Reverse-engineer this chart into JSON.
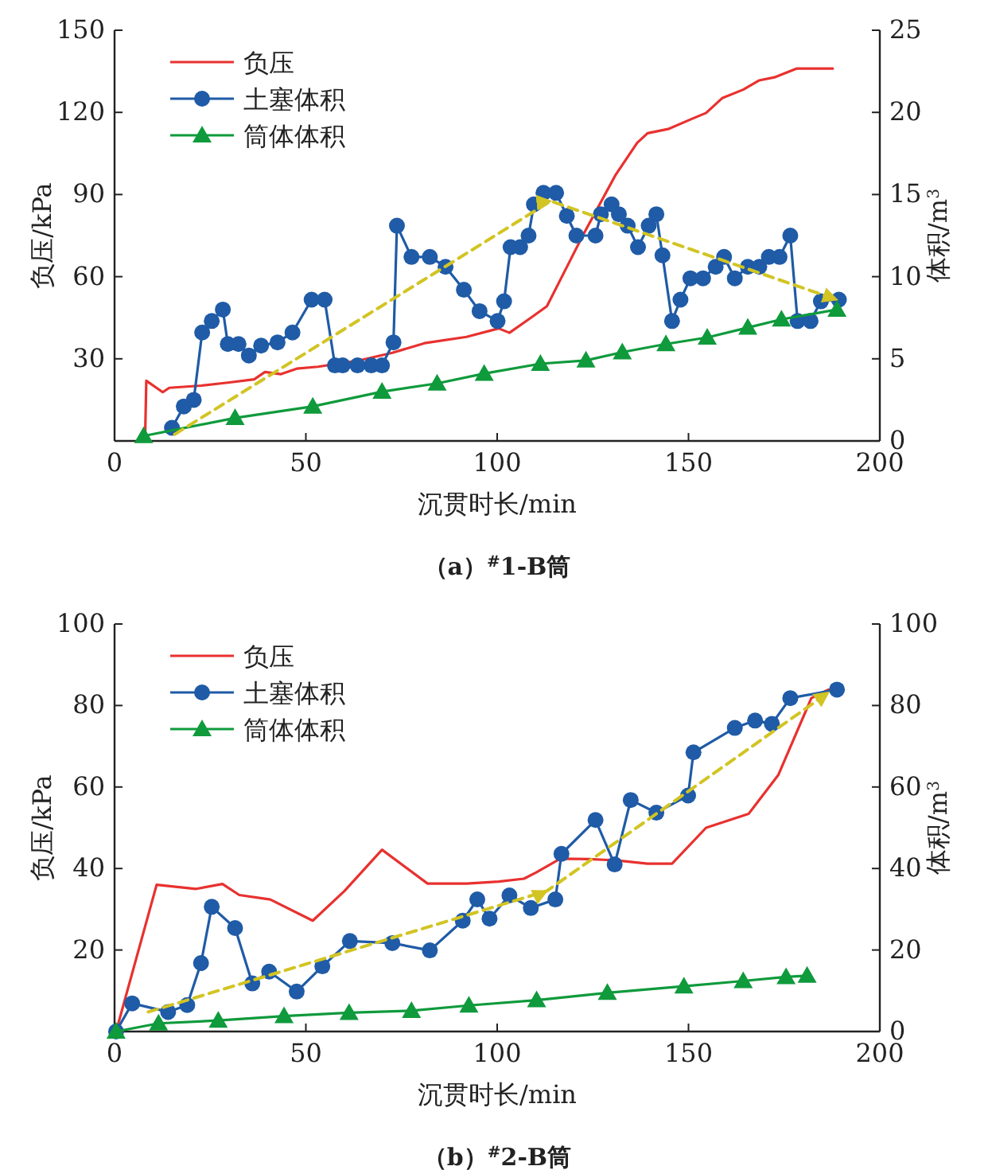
{
  "chart_data": [
    {
      "type": "line",
      "title": "（a）$^{#}$1-B筒",
      "xlabel": "沉贯时长/min",
      "ylabel": "负压/kPa",
      "y2label": "体积/m$^{3}$",
      "legend": "top left",
      "xlim": [
        0,
        200
      ],
      "xticks": [
        0,
        50,
        100,
        150,
        200
      ],
      "ylim": [
        0,
        150
      ],
      "yticks": [
        {
          "value": 0,
          "label": null
        },
        30,
        60,
        90,
        120,
        150
      ],
      "y2lim": [
        0,
        25
      ],
      "y2ticks": [
        0,
        5,
        10,
        15,
        20,
        25
      ],
      "series": [
        {
          "name": "负压",
          "color": "#e8312f",
          "marker": "none",
          "line_style": "solid",
          "x": [
            8,
            8.3,
            12.6,
            14.3,
            22.6,
            29.6,
            36.5,
            39.3,
            43.5,
            47.6,
            53.2,
            64.3,
            72.6,
            81,
            92,
            100.4,
            103.2,
            108.8,
            113,
            117.1,
            122.7,
            131,
            136.6,
            139.3,
            144.9,
            150.5,
            154.6,
            158.8,
            164.3,
            168.5,
            172.7,
            178.2,
            187.7
          ],
          "values": [
            2,
            22,
            17.8,
            19.4,
            20.2,
            21.3,
            22.5,
            25.2,
            24.4,
            26.4,
            27.1,
            29.5,
            32.2,
            35.7,
            38,
            41.1,
            39.5,
            45,
            49.2,
            60.5,
            75.9,
            97.3,
            108.9,
            112.4,
            114,
            117.4,
            119.8,
            125.2,
            128.3,
            131.7,
            132.9,
            136,
            136
          ]
        },
        {
          "name": "土塞体积",
          "color": "#1f5ba6",
          "marker": "circle",
          "line_style": "solid",
          "axis": "y2",
          "x": [
            15,
            18.1,
            20.7,
            22.9,
            25.4,
            28.3,
            29.6,
            32.4,
            35.1,
            38.3,
            42.6,
            46.5,
            51.5,
            54.9,
            57.6,
            59.6,
            63.5,
            67.1,
            69.9,
            72.9,
            73.8,
            77.6,
            82.4,
            86.5,
            91.3,
            95.4,
            100.1,
            101.8,
            103.5,
            106,
            108.2,
            109.6,
            112.1,
            115.4,
            118.2,
            120.7,
            125.7,
            127.1,
            129.9,
            131.8,
            134.1,
            136.8,
            139.6,
            141.6,
            143.2,
            145.7,
            147.9,
            150.5,
            153.8,
            157.1,
            159.3,
            162.1,
            165.5,
            168.5,
            171,
            173.8,
            176.6,
            178.5,
            181.9,
            184.6,
            189.3
          ],
          "values": [
            0.8,
            2.1,
            2.5,
            6.6,
            7.3,
            8,
            5.9,
            5.9,
            5.2,
            5.8,
            6,
            6.6,
            8.6,
            8.6,
            4.6,
            4.6,
            4.6,
            4.6,
            4.6,
            6,
            13.1,
            11.2,
            11.2,
            10.6,
            9.2,
            7.9,
            7.3,
            8.5,
            11.8,
            11.8,
            12.5,
            14.4,
            15.1,
            15.1,
            13.7,
            12.5,
            12.5,
            13.8,
            14.4,
            13.8,
            13.1,
            11.8,
            13.1,
            13.8,
            11.3,
            7.3,
            8.6,
            9.9,
            9.9,
            10.6,
            11.2,
            9.9,
            10.6,
            10.6,
            11.2,
            11.2,
            12.5,
            7.3,
            7.3,
            8.5,
            8.6
          ]
        },
        {
          "name": "筒体体积",
          "color": "#0f9a3c",
          "marker": "triangle",
          "line_style": "solid",
          "axis": "y2",
          "x": [
            7.6,
            31.5,
            51.8,
            69.9,
            84.3,
            96.6,
            111.3,
            123.2,
            132.7,
            144.1,
            154.9,
            165.5,
            174.3,
            188.8
          ],
          "values": [
            0.3,
            1.4,
            2.1,
            3,
            3.5,
            4.1,
            4.7,
            4.9,
            5.4,
            5.9,
            6.3,
            6.9,
            7.4,
            8
          ]
        },
        {
          "color": "#d2c423",
          "marker": "none",
          "line_style": "dashed",
          "axis": "y2",
          "x": [
            15.7,
            114,
            188.8
          ],
          "values": [
            0.4,
            14.6,
            8.6
          ]
        }
      ]
    },
    {
      "type": "line",
      "title": "（b）$^{#}$2-B筒",
      "xlabel": "沉贯时长/min",
      "ylabel": "负压/kPa",
      "y2label": "体积/m$^{3}$",
      "legend": "top left",
      "xlim": [
        0,
        200
      ],
      "xticks": [
        0,
        50,
        100,
        150,
        200
      ],
      "ylim": [
        0,
        100
      ],
      "yticks": [
        {
          "value": 0,
          "label": null
        },
        20,
        40,
        60,
        80,
        100
      ],
      "y2lim": [
        0,
        100
      ],
      "y2ticks": [
        0,
        20,
        40,
        60,
        80,
        100
      ],
      "series": [
        {
          "name": "负压",
          "color": "#e8312f",
          "marker": "none",
          "line_style": "solid",
          "x": [
            0.4,
            11,
            21.3,
            28.2,
            32.6,
            40.7,
            51.8,
            60.1,
            69.9,
            81.8,
            92.1,
            100.4,
            107,
            110.1,
            116.5,
            124,
            131,
            139.3,
            145.7,
            154.6,
            165.7,
            173.5,
            182.1,
            186.6
          ],
          "values": [
            0,
            36,
            35,
            36.2,
            33.5,
            32.4,
            27.2,
            34.5,
            44.6,
            36.3,
            36.3,
            36.8,
            37.5,
            39,
            42.4,
            42.3,
            42,
            41.2,
            41.2,
            50,
            53.4,
            63,
            81.8,
            83.9
          ]
        },
        {
          "name": "土塞体积",
          "color": "#1f5ba6",
          "marker": "circle",
          "line_style": "solid",
          "axis": "y2",
          "x": [
            0.4,
            4.6,
            14,
            19,
            22.6,
            25.4,
            31.5,
            36,
            40.4,
            47.6,
            54.3,
            61.5,
            72.6,
            82.4,
            91,
            94.8,
            98,
            103.2,
            108.8,
            115.2,
            116.8,
            125.7,
            130.7,
            134.9,
            141.6,
            149.9,
            151.3,
            162.1,
            167.4,
            171.8,
            176.6,
            188.8
          ],
          "values": [
            0,
            6.9,
            4.8,
            6.5,
            16.8,
            30.6,
            25.4,
            11.8,
            14.7,
            9.8,
            16,
            22.2,
            21.7,
            19.9,
            27.2,
            32.4,
            27.7,
            33.4,
            30.3,
            32.4,
            43.6,
            51.9,
            41,
            56.8,
            53.7,
            57.9,
            68.5,
            74.5,
            76.3,
            75.5,
            81.8,
            83.9
          ]
        },
        {
          "name": "筒体体积",
          "color": "#0f9a3c",
          "marker": "triangle",
          "line_style": "solid",
          "axis": "y2",
          "x": [
            0.4,
            11.5,
            27.1,
            44.3,
            61.3,
            77.6,
            92.6,
            110.3,
            128.8,
            148.8,
            164.3,
            175.5,
            181
          ],
          "values": [
            0,
            2,
            2.7,
            3.8,
            4.6,
            5.1,
            6.4,
            7.7,
            9.5,
            11.1,
            12.4,
            13.4,
            13.7
          ]
        },
        {
          "color": "#d2c423",
          "marker": "none",
          "line_style": "dashed",
          "axis": "y2",
          "x": [
            8.8,
            113,
            186.6
          ],
          "values": [
            4.8,
            34.5,
            83.2
          ]
        }
      ]
    }
  ]
}
